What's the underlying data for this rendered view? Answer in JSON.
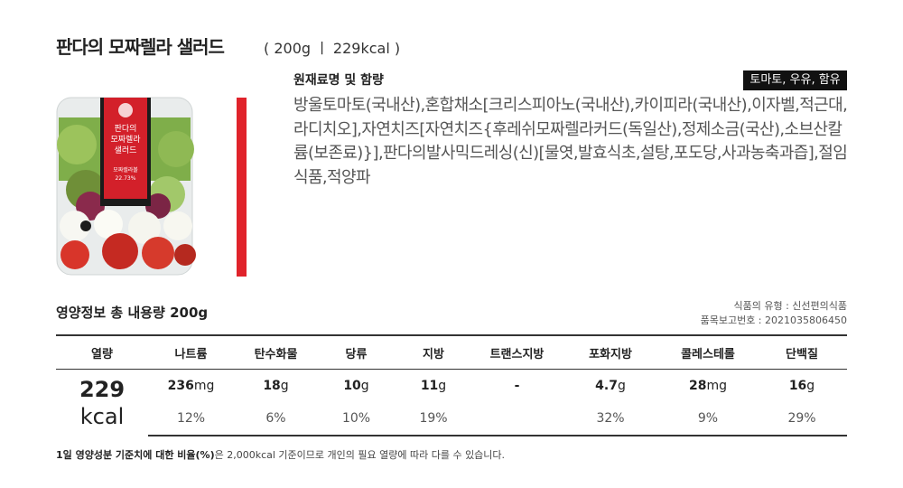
{
  "header": {
    "title": "판다의 모짜렐라 샐러드",
    "spec": "( 200g  ㅣ 229kcal )"
  },
  "product": {
    "label_lines": [
      "판다의",
      "모짜렐라",
      "샐러드"
    ],
    "badge": "모짜렐라볼",
    "badge_value": "22.73%"
  },
  "ingredients": {
    "heading": "원재료명 및 함량",
    "allergen": "토마토, 우유, 함유",
    "text": "방울토마토(국내산),혼합채소[크리스피아노(국내산),카이피라(국내산),이자벨,적근대,라디치오],자연치즈[자연치즈{후레쉬모짜렐라커드(독일산),정제소금(국산),소브산칼륨(보존료)}],판다의발사믹드레싱(신)[물엿,발효식초,설탕,포도당,사과농축과즙],절임식품,적양파"
  },
  "nutrition": {
    "title": "영양정보 총 내용량 200g",
    "food_type": "식품의 유형 : 신선편의식품",
    "report_no": "품목보고번호 : 2021035806450",
    "headers": [
      "열량",
      "나트륨",
      "탄수화물",
      "당류",
      "지방",
      "트랜스지방",
      "포화지방",
      "콜레스테롤",
      "단백질"
    ],
    "calories": {
      "amount": "229",
      "unit": "kcal"
    },
    "items": [
      {
        "amount": "236",
        "unit": "mg",
        "percent": "12%"
      },
      {
        "amount": "18",
        "unit": "g",
        "percent": "6%"
      },
      {
        "amount": "10",
        "unit": "g",
        "percent": "10%"
      },
      {
        "amount": "11",
        "unit": "g",
        "percent": "19%"
      },
      {
        "amount": "-",
        "unit": null,
        "percent": null
      },
      {
        "amount": "4.7",
        "unit": "g",
        "percent": "32%"
      },
      {
        "amount": "28",
        "unit": "mg",
        "percent": "9%"
      },
      {
        "amount": "16",
        "unit": "g",
        "percent": "29%"
      }
    ],
    "footnote_bold": "1일 영양성분 기준치에 대한 비율(%)",
    "footnote_rest": "은 2,000kcal 기준이므로 개인의 필요 열량에 따라 다를 수 있습니다."
  }
}
